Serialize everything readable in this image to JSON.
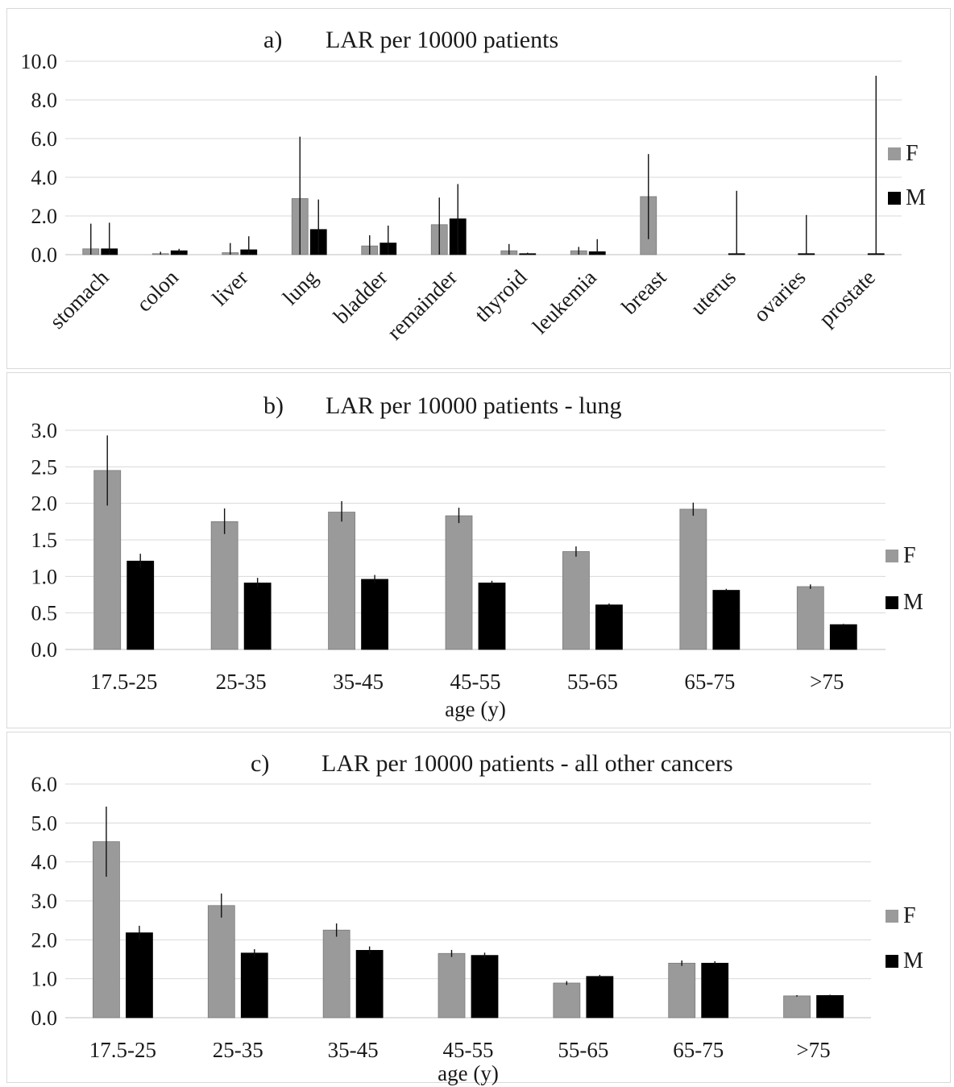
{
  "colors": {
    "F": "#9a9a9a",
    "M": "#000000",
    "grid": "#d9d9d9",
    "axis": "#bfbfbf"
  },
  "chart_data": [
    {
      "type": "bar",
      "title_prefix": "a)",
      "title": "LAR per 10000 patients",
      "xlabel": "",
      "ylabel": "",
      "ylim": [
        0,
        10
      ],
      "yticks": [
        "0.0",
        "2.0",
        "4.0",
        "6.0",
        "8.0",
        "10.0"
      ],
      "grid": true,
      "legend": "right",
      "categories": [
        "stomach",
        "colon",
        "liver",
        "lung",
        "bladder",
        "remainder",
        "thyroid",
        "leukemia",
        "breast",
        "uterus",
        "ovaries",
        "prostate"
      ],
      "series": [
        {
          "name": "F",
          "values": [
            0.3,
            0.05,
            0.1,
            2.9,
            0.45,
            1.55,
            0.2,
            0.2,
            3.0,
            null,
            null,
            null
          ],
          "err_low": [
            0.0,
            0.0,
            0.0,
            0.0,
            0.0,
            0.0,
            0.0,
            0.0,
            0.8,
            null,
            null,
            null
          ],
          "err_high": [
            1.6,
            0.15,
            0.6,
            6.1,
            1.0,
            2.95,
            0.55,
            0.4,
            5.2,
            null,
            null,
            null
          ]
        },
        {
          "name": "M",
          "values": [
            0.3,
            0.2,
            0.25,
            1.3,
            0.6,
            1.85,
            0.05,
            0.15,
            null,
            0.05,
            0.05,
            0.05
          ],
          "err_low": [
            0.0,
            0.0,
            0.0,
            0.0,
            0.0,
            0.0,
            0.0,
            0.0,
            null,
            0.0,
            0.0,
            0.0
          ],
          "err_high": [
            1.65,
            0.3,
            0.95,
            2.85,
            1.5,
            3.65,
            0.1,
            0.8,
            null,
            3.3,
            2.05,
            9.25
          ]
        }
      ]
    },
    {
      "type": "bar",
      "title_prefix": "b)",
      "title": "LAR per 10000 patients - lung",
      "xlabel": "age (y)",
      "ylabel": "",
      "ylim": [
        0,
        3
      ],
      "yticks": [
        "0.0",
        "0.5",
        "1.0",
        "1.5",
        "2.0",
        "2.5",
        "3.0"
      ],
      "grid": true,
      "legend": "right",
      "categories": [
        "17.5-25",
        "25-35",
        "35-45",
        "45-55",
        "55-65",
        "65-75",
        ">75"
      ],
      "series": [
        {
          "name": "F",
          "values": [
            2.45,
            1.75,
            1.88,
            1.83,
            1.34,
            1.92,
            0.86
          ],
          "err_low": [
            1.97,
            1.58,
            1.75,
            1.73,
            1.27,
            1.83,
            0.83
          ],
          "err_high": [
            2.93,
            1.93,
            2.03,
            1.94,
            1.41,
            2.01,
            0.89
          ]
        },
        {
          "name": "M",
          "values": [
            1.21,
            0.91,
            0.96,
            0.91,
            0.61,
            0.81,
            0.34
          ],
          "err_low": [
            1.12,
            0.86,
            0.91,
            0.88,
            0.58,
            0.79,
            0.33
          ],
          "err_high": [
            1.31,
            0.98,
            1.02,
            0.94,
            0.63,
            0.83,
            0.35
          ]
        }
      ]
    },
    {
      "type": "bar",
      "title_prefix": "c)",
      "title": "LAR per 10000 patients - all other cancers",
      "xlabel": "age (y)",
      "ylabel": "",
      "ylim": [
        0,
        6
      ],
      "yticks": [
        "0.0",
        "1.0",
        "2.0",
        "3.0",
        "4.0",
        "5.0",
        "6.0"
      ],
      "grid": true,
      "legend": "right",
      "categories": [
        "17.5-25",
        "25-35",
        "35-45",
        "45-55",
        "55-65",
        "65-75",
        ">75"
      ],
      "series": [
        {
          "name": "F",
          "values": [
            4.52,
            2.88,
            2.25,
            1.65,
            0.89,
            1.4,
            0.56
          ],
          "err_low": [
            3.62,
            2.57,
            2.08,
            1.56,
            0.84,
            1.33,
            0.54
          ],
          "err_high": [
            5.42,
            3.19,
            2.42,
            1.74,
            0.94,
            1.47,
            0.58
          ]
        },
        {
          "name": "M",
          "values": [
            2.18,
            1.66,
            1.73,
            1.6,
            1.06,
            1.4,
            0.57
          ],
          "err_low": [
            2.0,
            1.56,
            1.63,
            1.53,
            1.02,
            1.35,
            0.55
          ],
          "err_high": [
            2.36,
            1.76,
            1.83,
            1.67,
            1.1,
            1.45,
            0.59
          ]
        }
      ]
    }
  ]
}
